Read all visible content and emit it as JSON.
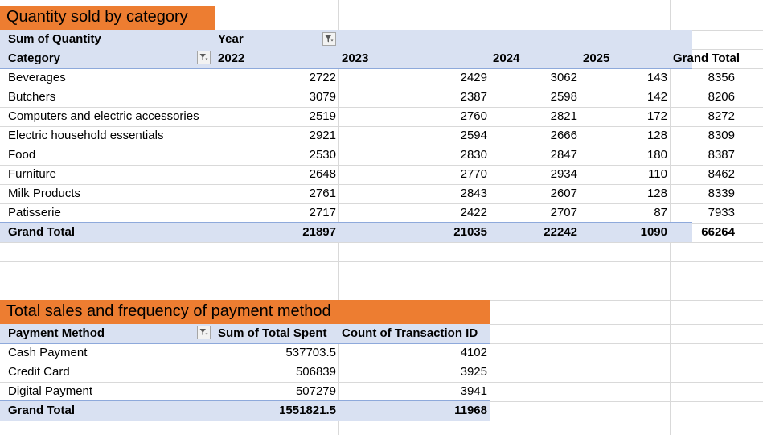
{
  "pivot_quantity": {
    "title": "Quantity sold by category",
    "value_label": "Sum of Quantity",
    "column_field": "Year",
    "row_field": "Category",
    "columns": [
      "2022",
      "2023",
      "2024",
      "2025",
      "Grand Total"
    ],
    "rows": [
      {
        "label": "Beverages",
        "values": [
          "2722",
          "2429",
          "3062",
          "143",
          "8356"
        ]
      },
      {
        "label": "Butchers",
        "values": [
          "3079",
          "2387",
          "2598",
          "142",
          "8206"
        ]
      },
      {
        "label": "Computers and electric accessories",
        "values": [
          "2519",
          "2760",
          "2821",
          "172",
          "8272"
        ]
      },
      {
        "label": "Electric household essentials",
        "values": [
          "2921",
          "2594",
          "2666",
          "128",
          "8309"
        ]
      },
      {
        "label": "Food",
        "values": [
          "2530",
          "2830",
          "2847",
          "180",
          "8387"
        ]
      },
      {
        "label": "Furniture",
        "values": [
          "2648",
          "2770",
          "2934",
          "110",
          "8462"
        ]
      },
      {
        "label": "Milk Products",
        "values": [
          "2761",
          "2843",
          "2607",
          "128",
          "8339"
        ]
      },
      {
        "label": "Patisserie",
        "values": [
          "2717",
          "2422",
          "2707",
          "87",
          "7933"
        ]
      }
    ],
    "total": {
      "label": "Grand Total",
      "values": [
        "21897",
        "21035",
        "22242",
        "1090",
        "66264"
      ]
    }
  },
  "pivot_payment": {
    "title": "Total sales and frequency of payment method",
    "row_field": "Payment Method",
    "columns": [
      "Sum of Total Spent",
      "Count of Transaction ID"
    ],
    "rows": [
      {
        "label": "Cash Payment",
        "values": [
          "537703.5",
          "4102"
        ]
      },
      {
        "label": "Credit Card",
        "values": [
          "506839",
          "3925"
        ]
      },
      {
        "label": "Digital Payment",
        "values": [
          "507279",
          "3941"
        ]
      }
    ],
    "total": {
      "label": "Grand Total",
      "values": [
        "1551821.5",
        "11968"
      ]
    }
  },
  "icons": {
    "filter": "filter-dropdown-icon",
    "row_filter": "filter-dropdown-icon"
  }
}
